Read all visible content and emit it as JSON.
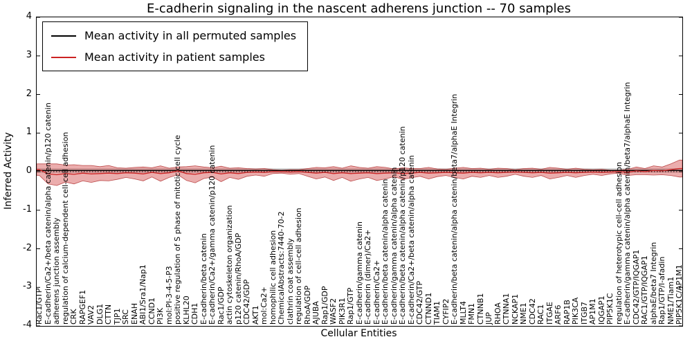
{
  "figure": {
    "title": "E-cadherin signaling in the nascent adherens junction -- 70 samples",
    "xlabel": "Cellular Entities",
    "ylabel": "Inferred Activity"
  },
  "legend": {
    "position": "upper left",
    "items": [
      {
        "label": "Mean activity in all permuted samples",
        "color": "#000000"
      },
      {
        "label": "Mean activity in patient samples",
        "color": "#cc2222"
      }
    ]
  },
  "chart_data": {
    "type": "line",
    "title": "E-cadherin signaling in the nascent adherens junction -- 70 samples",
    "xlabel": "Cellular Entities",
    "ylabel": "Inferred Activity",
    "ylim": [
      -4,
      4
    ],
    "yticks": [
      -4,
      -3,
      -2,
      -1,
      0,
      1,
      2,
      3,
      4
    ],
    "grid": false,
    "zero_line": "dotted",
    "legend_position": "upper left",
    "colors": {
      "permuted": "#000000",
      "patient": "#cc2222",
      "patient_band_fill": "rgba(204,51,51,0.40)",
      "patient_band_edge": "rgba(170,30,30,0.75)",
      "permuted_band_fill": "rgba(90,90,90,0.25)"
    },
    "categories": [
      "Rac1/GTP",
      "E-cadherin/Ca2+/beta catenin/alpha catenin/p120 catenin",
      "adherens junction assembly",
      "regulation of calcium-dependent cell-cell adhesion",
      "CRK",
      "RAPGEF1",
      "VAV2",
      "DLG1",
      "CTTN",
      "TJP1",
      "SRC",
      "ENAH",
      "ABI1/Sra1/Nap1",
      "CCND1",
      "PI3K",
      "mol:PI-3-4-5-P3",
      "positive regulation of S phase of mitotic cell cycle",
      "KLHL20",
      "CDH1",
      "E-cadherin/beta catenin",
      "E-cadherin/Ca2+/gamma catenin/p120 catenin",
      "Rac1/GDP",
      "actin cytoskeleton organization",
      "p120 catenin/RhoA/GDP",
      "CDC42/GDP",
      "AKT1",
      "mol:Ca2+",
      "homophilic cell adhesion",
      "ChemicalAbstracts:7440-70-2",
      "clathrin coat assembly",
      "regulation of cell-cell adhesion",
      "RhoA/GDP",
      "AJUBA",
      "Rap1/GDP",
      "WASF2",
      "PIK3R1",
      "Rap1/GTP",
      "E-cadherin/gamma catenin",
      "E-cadherin (dimer)/Ca2+",
      "E-cadherin/Ca2+",
      "E-cadherin/beta catenin/alpha catenin",
      "E-cadherin/gamma catenin/alpha catenin",
      "E-cadherin/beta catenin/alpha catenin/p120 catenin",
      "E-cadherin/Ca2+/beta catenin/alpha catenin",
      "CDC42/GTP",
      "CTNND1",
      "TIAM1",
      "CYFIP2",
      "E-cadherin/beta catenin/alpha catenin/beta7/alphaE Integrin",
      "MLLT4",
      "FMN1",
      "CTNNB1",
      "JUP",
      "RHOA",
      "CTNNA1",
      "NCKAP1",
      "NME1",
      "CDC42",
      "RAC1",
      "ITGAE",
      "ARF6",
      "RAP1B",
      "PIK3CA",
      "ITGB7",
      "AP1M1",
      "IQGAP1",
      "PIP5K1C",
      "regulation of heterotypic cell-cell adhesion",
      "E-cadherin/gamma catenin/alpha catenin/beta7/alphaE Integrin",
      "CDC42/GTP/IQGAP1",
      "RAC1/GTP/IQGAP1",
      "alphaE/beta7 Integrin",
      "Rap1/GTP/l-afadin",
      "NME1/Tiam1",
      "PIP5K1C/AP1M1"
    ],
    "series": [
      {
        "name": "Mean activity in all permuted samples",
        "color": "#000000",
        "constant_value": 0.03
      },
      {
        "name": "Mean activity in patient samples",
        "color": "#cc2222",
        "values": [
          0.05,
          -0.06,
          -0.08,
          -0.05,
          -0.07,
          -0.04,
          -0.06,
          -0.05,
          -0.04,
          -0.05,
          -0.03,
          -0.04,
          -0.06,
          -0.02,
          -0.05,
          -0.03,
          0.02,
          -0.05,
          -0.07,
          -0.03,
          -0.02,
          -0.06,
          -0.03,
          -0.05,
          -0.02,
          -0.01,
          -0.02,
          0.0,
          0.0,
          -0.01,
          0.0,
          -0.02,
          -0.04,
          -0.02,
          -0.05,
          -0.03,
          -0.05,
          -0.04,
          -0.03,
          -0.05,
          -0.04,
          -0.03,
          -0.05,
          -0.04,
          -0.02,
          -0.04,
          -0.03,
          -0.02,
          -0.03,
          -0.04,
          -0.02,
          -0.03,
          -0.02,
          -0.03,
          -0.02,
          -0.01,
          -0.02,
          -0.03,
          -0.02,
          -0.04,
          -0.03,
          -0.02,
          -0.03,
          -0.02,
          -0.01,
          -0.02,
          -0.01,
          0.0,
          -0.02,
          0.02,
          0.0,
          0.03,
          0.02,
          0.05,
          0.08
        ]
      }
    ],
    "patient_band_halfwidth": [
      0.15,
      0.26,
      0.28,
      0.22,
      0.25,
      0.2,
      0.22,
      0.18,
      0.2,
      0.15,
      0.12,
      0.15,
      0.18,
      0.12,
      0.2,
      0.12,
      0.1,
      0.18,
      0.22,
      0.15,
      0.12,
      0.2,
      0.12,
      0.15,
      0.1,
      0.08,
      0.1,
      0.05,
      0.04,
      0.06,
      0.05,
      0.1,
      0.15,
      0.12,
      0.18,
      0.12,
      0.2,
      0.15,
      0.12,
      0.18,
      0.15,
      0.1,
      0.15,
      0.12,
      0.1,
      0.15,
      0.1,
      0.08,
      0.12,
      0.15,
      0.1,
      0.12,
      0.08,
      0.12,
      0.1,
      0.06,
      0.1,
      0.12,
      0.08,
      0.15,
      0.12,
      0.08,
      0.12,
      0.08,
      0.06,
      0.08,
      0.05,
      0.04,
      0.08,
      0.1,
      0.08,
      0.12,
      0.1,
      0.15,
      0.22
    ],
    "permuted_band_halfwidth": 0.06
  }
}
